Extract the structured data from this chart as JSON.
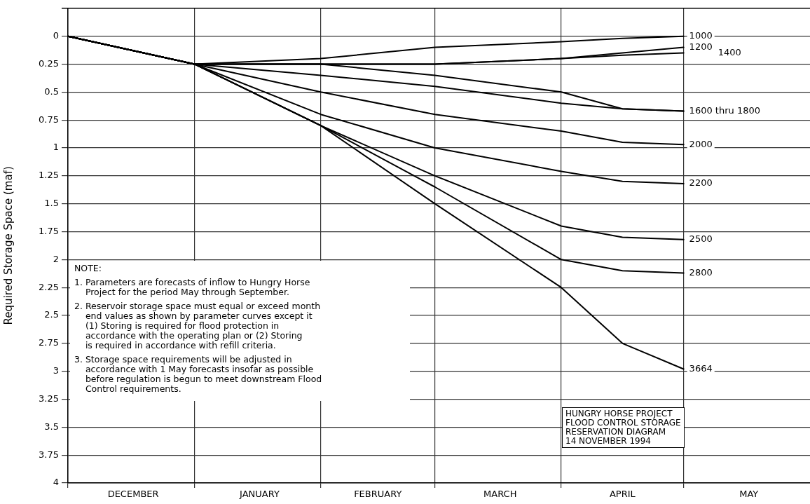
{
  "chart_data": {
    "type": "line",
    "ylabel": "Required Storage Space (maf)",
    "title": "HUNGRY HORSE PROJECT\nFLOOD CONTROL STORAGE\nRESERVATION DIAGRAM\n14 NOVEMBER 1994",
    "annotations": [
      "NOTE:",
      "1. Parameters are forecasts of inflow to Hungry Horse\n    Project for the period May through September.",
      "2. Reservoir storage space must equal or exceed month\n    end values as shown by parameter curves except it\n    (1) Storing is required for flood protection in\n    accordance with the operating plan or (2) Storing\n    is required in accordance with refill criteria.",
      "3. Storage space requirements will be adjusted in\n    accordance with 1 May forecasts insofar as possible\n    before regulation is begun to meet downstream Flood\n    Control requirements."
    ],
    "x": [
      "1994-11-30",
      "1994-12-31",
      "1995-01-31",
      "1995-02-28",
      "1995-03-31",
      "1995-04-15",
      "1995-04-30"
    ],
    "series": [
      {
        "name": "1000",
        "color": "#000000",
        "values": [
          0,
          0.25,
          0.2,
          0.1,
          0.05,
          0.02,
          0
        ]
      },
      {
        "name": "1200",
        "color": "#000000",
        "values": [
          0,
          0.25,
          0.25,
          0.25,
          0.2,
          0.15,
          0.1
        ]
      },
      {
        "name": "1400",
        "color": "#000000",
        "values": [
          0,
          0.25,
          0.25,
          0.25,
          0.2,
          0.17,
          0.15
        ]
      },
      {
        "name": "1600 thru 1800",
        "color": "#000000",
        "values": [
          0,
          0.25,
          0.25,
          0.35,
          0.5,
          0.65,
          0.67
        ]
      },
      {
        "color": "#000000",
        "values": [
          0,
          0.25,
          0.35,
          0.45,
          0.6,
          0.65,
          0.67
        ]
      },
      {
        "name": "2000",
        "color": "#000000",
        "values": [
          0,
          0.25,
          0.5,
          0.7,
          0.85,
          0.95,
          0.97
        ]
      },
      {
        "name": "2200",
        "color": "#000000",
        "values": [
          0,
          0.25,
          0.7,
          1.0,
          1.21,
          1.3,
          1.32
        ]
      },
      {
        "name": "2500",
        "color": "#000000",
        "values": [
          0,
          0.25,
          0.8,
          1.25,
          1.7,
          1.8,
          1.82
        ]
      },
      {
        "name": "2800",
        "color": "#000000",
        "values": [
          0,
          0.25,
          0.8,
          1.35,
          2.0,
          2.1,
          2.12
        ]
      },
      {
        "name": "3664",
        "color": "#000000",
        "values": [
          0,
          0.25,
          0.8,
          1.5,
          2.25,
          2.75,
          2.98
        ]
      }
    ],
    "xlim": [
      "1994-11-30",
      "1995-05-31"
    ],
    "xticks": [
      {
        "value": "1994-11-30",
        "label": null
      },
      {
        "value": "1994-12-16",
        "label": "DECEMBER"
      },
      {
        "value": "1994-12-31",
        "label": null
      },
      {
        "value": "1995-01-16",
        "label": "JANUARY"
      },
      {
        "value": "1995-01-31",
        "label": null
      },
      {
        "value": "1995-02-14",
        "label": "FEBRUARY"
      },
      {
        "value": "1995-02-28",
        "label": null
      },
      {
        "value": "1995-03-16",
        "label": "MARCH"
      },
      {
        "value": "1995-03-31",
        "label": null
      },
      {
        "value": "1995-04-15",
        "label": "APRIL"
      },
      {
        "value": "1995-04-30",
        "label": null
      },
      {
        "value": "1995-05-16",
        "label": "MAY"
      }
    ],
    "ylim": [
      4,
      -0.25
    ],
    "yticks": [
      0,
      0.25,
      0.5,
      0.75,
      1,
      1.25,
      1.5,
      1.75,
      2,
      2.25,
      2.5,
      2.75,
      3,
      3.25,
      3.5,
      3.75,
      4
    ],
    "grid": true,
    "legend": false,
    "marker": "none",
    "line_style": "solid"
  }
}
